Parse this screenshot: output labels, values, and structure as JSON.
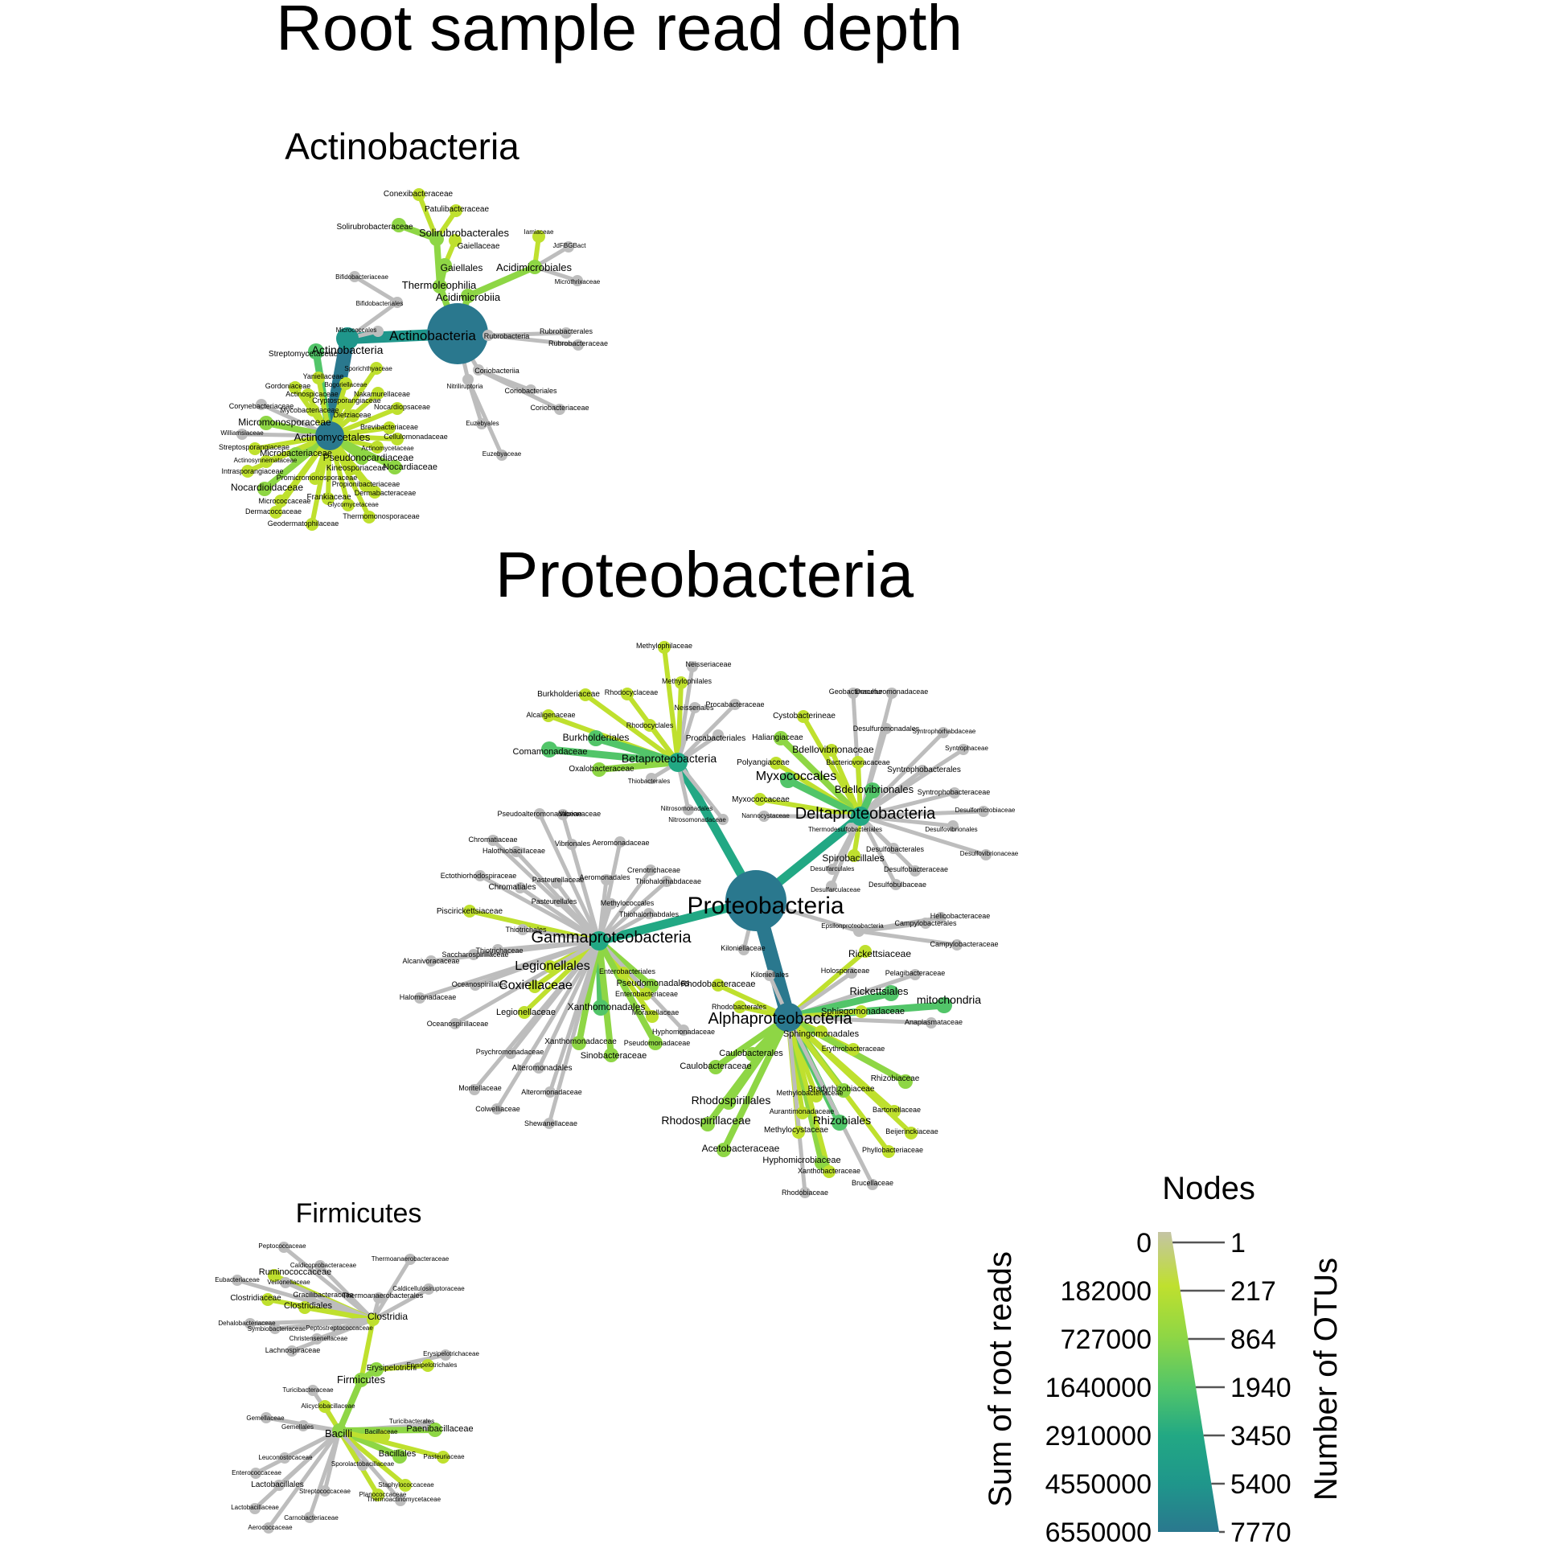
{
  "title": "Root sample read depth",
  "colors": {
    "gray": "#bdbdbd",
    "scale": [
      "#c4c4a4",
      "#bfe02e",
      "#8ed645",
      "#52c569",
      "#22a884",
      "#1f968b",
      "#2a788e"
    ]
  },
  "legend": {
    "title": "Nodes",
    "left_axis_title": "Sum of root reads",
    "right_axis_title": "Number of OTUs",
    "left_ticks": [
      "0",
      "182000",
      "727000",
      "1640000",
      "2910000",
      "4550000",
      "6550000"
    ],
    "right_ticks": [
      "1",
      "217",
      "864",
      "1940",
      "3450",
      "5400",
      "7770"
    ]
  },
  "trees": [
    {
      "title": "Actinobacteria",
      "root": "Actinobacteria",
      "nodes": [
        {
          "name": "Actinobacteria",
          "level": 7
        },
        {
          "name": "Actinobacteria",
          "level": 5
        },
        {
          "name": "Actinomycetales",
          "level": 6
        },
        {
          "name": "Thermoleophilia",
          "level": 2
        },
        {
          "name": "Acidimicrobiia",
          "level": 2
        },
        {
          "name": "Solirubrobacterales",
          "level": 2
        },
        {
          "name": "Gaiellales",
          "level": 2
        },
        {
          "name": "Acidimicrobiales",
          "level": 2
        },
        {
          "name": "Rubrobacteria",
          "level": 0
        },
        {
          "name": "Coriobacteriia",
          "level": 0
        },
        {
          "name": "Nitriliruptoria",
          "level": 0
        },
        {
          "name": "Bifidobacteriales",
          "level": 0
        },
        {
          "name": "Micrococcales",
          "level": 0
        },
        {
          "name": "Conexibacteraceae",
          "level": 1
        },
        {
          "name": "Patulibacteraceae",
          "level": 1
        },
        {
          "name": "Solirubrobacteraceae",
          "level": 2
        },
        {
          "name": "Gaiellaceae",
          "level": 1
        },
        {
          "name": "Iamiaceae",
          "level": 1
        },
        {
          "name": "JdFBGBact",
          "level": 0
        },
        {
          "name": "Microthrixaceae",
          "level": 0
        },
        {
          "name": "Bifidobacteriaceae",
          "level": 0
        },
        {
          "name": "Rubrobacterales",
          "level": 0
        },
        {
          "name": "Rubrobacteraceae",
          "level": 0
        },
        {
          "name": "Coriobacteriales",
          "level": 0
        },
        {
          "name": "Coriobacteriaceae",
          "level": 0
        },
        {
          "name": "Euzebyales",
          "level": 0
        },
        {
          "name": "Euzebyaceae",
          "level": 0
        },
        {
          "name": "Streptomycetaceae",
          "level": 3
        },
        {
          "name": "Yaniellaceae",
          "level": 1
        },
        {
          "name": "Sporichthyaceae",
          "level": 1
        },
        {
          "name": "Gordoniaceae",
          "level": 1
        },
        {
          "name": "Bogoriellaceae",
          "level": 1
        },
        {
          "name": "Actinospicaceae",
          "level": 1
        },
        {
          "name": "Nakamurellaceae",
          "level": 1
        },
        {
          "name": "Corynebacteriaceae",
          "level": 0
        },
        {
          "name": "Cryptosporangiaceae",
          "level": 1
        },
        {
          "name": "Mycobacteriaceae",
          "level": 1
        },
        {
          "name": "Nocardiopsaceae",
          "level": 1
        },
        {
          "name": "Dietziaceae",
          "level": 1
        },
        {
          "name": "Micromonosporaceae",
          "level": 2
        },
        {
          "name": "Williamsiaceae",
          "level": 0
        },
        {
          "name": "Brevibacteriaceae",
          "level": 1
        },
        {
          "name": "Cellulomonadaceae",
          "level": 1
        },
        {
          "name": "Streptosporangiaceae",
          "level": 1
        },
        {
          "name": "Microbacteriaceae",
          "level": 2
        },
        {
          "name": "Actinomycetaceae",
          "level": 1
        },
        {
          "name": "Actinosynnemataceae",
          "level": 1
        },
        {
          "name": "Pseudonocardiaceae",
          "level": 2
        },
        {
          "name": "Kineosporiaceae",
          "level": 1
        },
        {
          "name": "Nocardiaceae",
          "level": 2
        },
        {
          "name": "Intrasporangiaceae",
          "level": 1
        },
        {
          "name": "Promicromonosporaceae",
          "level": 1
        },
        {
          "name": "Propionibacteriaceae",
          "level": 1
        },
        {
          "name": "Nocardioidaceae",
          "level": 2
        },
        {
          "name": "Dermabacteraceae",
          "level": 1
        },
        {
          "name": "Frankiaceae",
          "level": 1
        },
        {
          "name": "Micrococcaceae",
          "level": 1
        },
        {
          "name": "Glycomycetaceae",
          "level": 1
        },
        {
          "name": "Dermacoccaceae",
          "level": 1
        },
        {
          "name": "Thermomonosporaceae",
          "level": 1
        },
        {
          "name": "Geodermatophilaceae",
          "level": 1
        }
      ]
    },
    {
      "title": "Proteobacteria",
      "root": "Proteobacteria",
      "nodes": [
        {
          "name": "Proteobacteria",
          "level": 7
        },
        {
          "name": "Betaproteobacteria",
          "level": 4
        },
        {
          "name": "Deltaproteobacteria",
          "level": 4
        },
        {
          "name": "Gammaproteobacteria",
          "level": 4
        },
        {
          "name": "Alphaproteobacteria",
          "level": 6
        },
        {
          "name": "Epsilonproteobacteria",
          "level": 0
        },
        {
          "name": "Methylophilaceae",
          "level": 1
        },
        {
          "name": "Neisseriaceae",
          "level": 0
        },
        {
          "name": "Methylophilales",
          "level": 1
        },
        {
          "name": "Burkholderiaceae",
          "level": 1
        },
        {
          "name": "Rhodocyclaceae",
          "level": 1
        },
        {
          "name": "Neisseriales",
          "level": 0
        },
        {
          "name": "Procabacteraceae",
          "level": 0
        },
        {
          "name": "Alcaligenaceae",
          "level": 1
        },
        {
          "name": "Rhodocyclales",
          "level": 1
        },
        {
          "name": "Burkholderiales",
          "level": 3
        },
        {
          "name": "Procabacteriales",
          "level": 0
        },
        {
          "name": "Comamonadaceae",
          "level": 3
        },
        {
          "name": "Oxalobacteraceae",
          "level": 2
        },
        {
          "name": "Thiobacterales",
          "level": 0
        },
        {
          "name": "Nitrosomonadales",
          "level": 0
        },
        {
          "name": "Nitrosomonadaceae",
          "level": 0
        },
        {
          "name": "Geobacteraceae",
          "level": 0
        },
        {
          "name": "Desulfuromonadaceae",
          "level": 0
        },
        {
          "name": "Cystobacterineae",
          "level": 1
        },
        {
          "name": "Desulfuromonadales",
          "level": 0
        },
        {
          "name": "Syntrophorhabdaceae",
          "level": 0
        },
        {
          "name": "Haliangiaceae",
          "level": 2
        },
        {
          "name": "Bdellovibrionaceae",
          "level": 1
        },
        {
          "name": "Syntrophaceae",
          "level": 0
        },
        {
          "name": "Polyangiaceae",
          "level": 1
        },
        {
          "name": "Bacteriovoracaceae",
          "level": 1
        },
        {
          "name": "Syntrophobacterales",
          "level": 0
        },
        {
          "name": "Myxococcales",
          "level": 3
        },
        {
          "name": "Bdellovibrionales",
          "level": 3
        },
        {
          "name": "Syntrophobacteraceae",
          "level": 0
        },
        {
          "name": "Myxococcaceae",
          "level": 1
        },
        {
          "name": "Desulfomicrobiaceae",
          "level": 0
        },
        {
          "name": "Nannocystaceae",
          "level": 0
        },
        {
          "name": "Desulfovibrionales",
          "level": 0
        },
        {
          "name": "Thermodesulfobacteriales",
          "level": 0
        },
        {
          "name": "Desulfobacterales",
          "level": 0
        },
        {
          "name": "Desulfovibrionaceae",
          "level": 0
        },
        {
          "name": "Spirobacillales",
          "level": 1
        },
        {
          "name": "Desulfobacteraceae",
          "level": 0
        },
        {
          "name": "Desulfarculales",
          "level": 0
        },
        {
          "name": "Desulfobulbaceae",
          "level": 0
        },
        {
          "name": "Desulfarculaceae",
          "level": 0
        },
        {
          "name": "Helicobacteraceae",
          "level": 0
        },
        {
          "name": "Campylobacterales",
          "level": 0
        },
        {
          "name": "Campylobacteraceae",
          "level": 0
        },
        {
          "name": "Pseudoalteromonadaceae",
          "level": 0
        },
        {
          "name": "Vibrionaceae",
          "level": 0
        },
        {
          "name": "Chromatiaceae",
          "level": 0
        },
        {
          "name": "Vibrionales",
          "level": 0
        },
        {
          "name": "Aeromonadaceae",
          "level": 0
        },
        {
          "name": "Halothiobacillaceae",
          "level": 0
        },
        {
          "name": "Crenotrichaceae",
          "level": 0
        },
        {
          "name": "Ectothiorhodospiraceae",
          "level": 0
        },
        {
          "name": "Pasteurellaceae",
          "level": 0
        },
        {
          "name": "Aeromonadales",
          "level": 0
        },
        {
          "name": "Chromatiales",
          "level": 0
        },
        {
          "name": "Thiohalorhabdaceae",
          "level": 0
        },
        {
          "name": "Pasteurellales",
          "level": 0
        },
        {
          "name": "Methylococcales",
          "level": 0
        },
        {
          "name": "Piscirickettsiaceae",
          "level": 1
        },
        {
          "name": "Thiohalorhabdales",
          "level": 0
        },
        {
          "name": "Thiotrichales",
          "level": 0
        },
        {
          "name": "Thiotrichaceae",
          "level": 0
        },
        {
          "name": "Saccharospirillaceae",
          "level": 0
        },
        {
          "name": "Alcanivoracaceae",
          "level": 0
        },
        {
          "name": "Legionellales",
          "level": 1
        },
        {
          "name": "Enterobacteriales",
          "level": 1
        },
        {
          "name": "Oceanospirillales",
          "level": 0
        },
        {
          "name": "Coxiellaceae",
          "level": 1
        },
        {
          "name": "Pseudomonadales",
          "level": 2
        },
        {
          "name": "Enterobacteriaceae",
          "level": 1
        },
        {
          "name": "Halomonadaceae",
          "level": 0
        },
        {
          "name": "Xanthomonadales",
          "level": 3
        },
        {
          "name": "Moraxellaceae",
          "level": 1
        },
        {
          "name": "Legionellaceae",
          "level": 1
        },
        {
          "name": "Hyphomonadaceae",
          "level": 0
        },
        {
          "name": "Oceanospirillaceae",
          "level": 0
        },
        {
          "name": "Xanthomonadaceae",
          "level": 2
        },
        {
          "name": "Pseudomonadaceae",
          "level": 2
        },
        {
          "name": "Psychromonadaceae",
          "level": 0
        },
        {
          "name": "Sinobacteraceae",
          "level": 2
        },
        {
          "name": "Alteromonadales",
          "level": 0
        },
        {
          "name": "Moritellaceae",
          "level": 0
        },
        {
          "name": "Alteromonadaceae",
          "level": 0
        },
        {
          "name": "Colwelliaceae",
          "level": 0
        },
        {
          "name": "Shewanellaceae",
          "level": 0
        },
        {
          "name": "Kiloniellaceae",
          "level": 0
        },
        {
          "name": "Rickettsiaceae",
          "level": 1
        },
        {
          "name": "Kiloniellales",
          "level": 0
        },
        {
          "name": "Holosporaceae",
          "level": 0
        },
        {
          "name": "Pelagibacteraceae",
          "level": 0
        },
        {
          "name": "Rhodobacteraceae",
          "level": 1
        },
        {
          "name": "Rickettsiales",
          "level": 3
        },
        {
          "name": "mitochondria",
          "level": 3
        },
        {
          "name": "Sphingomonadaceae",
          "level": 1
        },
        {
          "name": "Rhodobacterales",
          "level": 1
        },
        {
          "name": "Anaplasmataceae",
          "level": 0
        },
        {
          "name": "Sphingomonadales",
          "level": 1
        },
        {
          "name": "Erythrobacteraceae",
          "level": 1
        },
        {
          "name": "Caulobacterales",
          "level": 2
        },
        {
          "name": "Caulobacteraceae",
          "level": 2
        },
        {
          "name": "Rhizobiaceae",
          "level": 2
        },
        {
          "name": "Bradyrhizobiaceae",
          "level": 2
        },
        {
          "name": "Methylobacteriaceae",
          "level": 1
        },
        {
          "name": "Rhodospirillales",
          "level": 2
        },
        {
          "name": "Bartonellaceae",
          "level": 1
        },
        {
          "name": "Aurantimonadaceae",
          "level": 1
        },
        {
          "name": "Rhodospirillaceae",
          "level": 2
        },
        {
          "name": "Rhizobiales",
          "level": 3
        },
        {
          "name": "Methylocystaceae",
          "level": 1
        },
        {
          "name": "Beijerinckiaceae",
          "level": 1
        },
        {
          "name": "Acetobacteraceae",
          "level": 2
        },
        {
          "name": "Phyllobacteriaceae",
          "level": 1
        },
        {
          "name": "Hyphomicrobiaceae",
          "level": 2
        },
        {
          "name": "Xanthobacteraceae",
          "level": 1
        },
        {
          "name": "Brucellaceae",
          "level": 0
        },
        {
          "name": "Rhodobiaceae",
          "level": 0
        }
      ]
    },
    {
      "title": "Firmicutes",
      "root": "Firmicutes",
      "nodes": [
        {
          "name": "Firmicutes",
          "level": 2
        },
        {
          "name": "Clostridia",
          "level": 1
        },
        {
          "name": "Bacilli",
          "level": 2
        },
        {
          "name": "Erysipelotrichi",
          "level": 2
        },
        {
          "name": "Peptococcaceae",
          "level": 0
        },
        {
          "name": "Thermoanaerobacteraceae",
          "level": 0
        },
        {
          "name": "Caldicoprobacteraceae",
          "level": 0
        },
        {
          "name": "Ruminococcaceae",
          "level": 1
        },
        {
          "name": "Eubacteriaceae",
          "level": 0
        },
        {
          "name": "Veillonellaceae",
          "level": 0
        },
        {
          "name": "Caldicellulosiruptoraceae",
          "level": 0
        },
        {
          "name": "Gracilibacteraceae",
          "level": 0
        },
        {
          "name": "Thermoanaerobacterales",
          "level": 0
        },
        {
          "name": "Clostridiaceae",
          "level": 1
        },
        {
          "name": "Clostridiales",
          "level": 1
        },
        {
          "name": "Dehalobacteriaceae",
          "level": 0
        },
        {
          "name": "Peptostreptococcaceae",
          "level": 0
        },
        {
          "name": "Symbiobacteriaceae",
          "level": 0
        },
        {
          "name": "Christensenellaceae",
          "level": 0
        },
        {
          "name": "Lachnospiraceae",
          "level": 0
        },
        {
          "name": "Erysipelotrichaceae",
          "level": 0
        },
        {
          "name": "Erysipelotrichales",
          "level": 1
        },
        {
          "name": "Turicibacteraceae",
          "level": 0
        },
        {
          "name": "Turicibacterales",
          "level": 0
        },
        {
          "name": "Gemellaceae",
          "level": 0
        },
        {
          "name": "Alicyclobacillaceae",
          "level": 1
        },
        {
          "name": "Gemellales",
          "level": 0
        },
        {
          "name": "Bacillaceae",
          "level": 1
        },
        {
          "name": "Paenibacillaceae",
          "level": 2
        },
        {
          "name": "Leuconostocaceae",
          "level": 0
        },
        {
          "name": "Bacillales",
          "level": 2
        },
        {
          "name": "Pasteuriaceae",
          "level": 1
        },
        {
          "name": "Enterococcaceae",
          "level": 0
        },
        {
          "name": "Sporolactobacillaceae",
          "level": 0
        },
        {
          "name": "Lactobacillales",
          "level": 0
        },
        {
          "name": "Streptococcaceae",
          "level": 0
        },
        {
          "name": "Staphylococcaceae",
          "level": 1
        },
        {
          "name": "Planococcaceae",
          "level": 1
        },
        {
          "name": "Lactobacillaceae",
          "level": 0
        },
        {
          "name": "Thermoactinomycetaceae",
          "level": 0
        },
        {
          "name": "Carnobacteriaceae",
          "level": 0
        },
        {
          "name": "Aerococcaceae",
          "level": 0
        }
      ]
    }
  ]
}
